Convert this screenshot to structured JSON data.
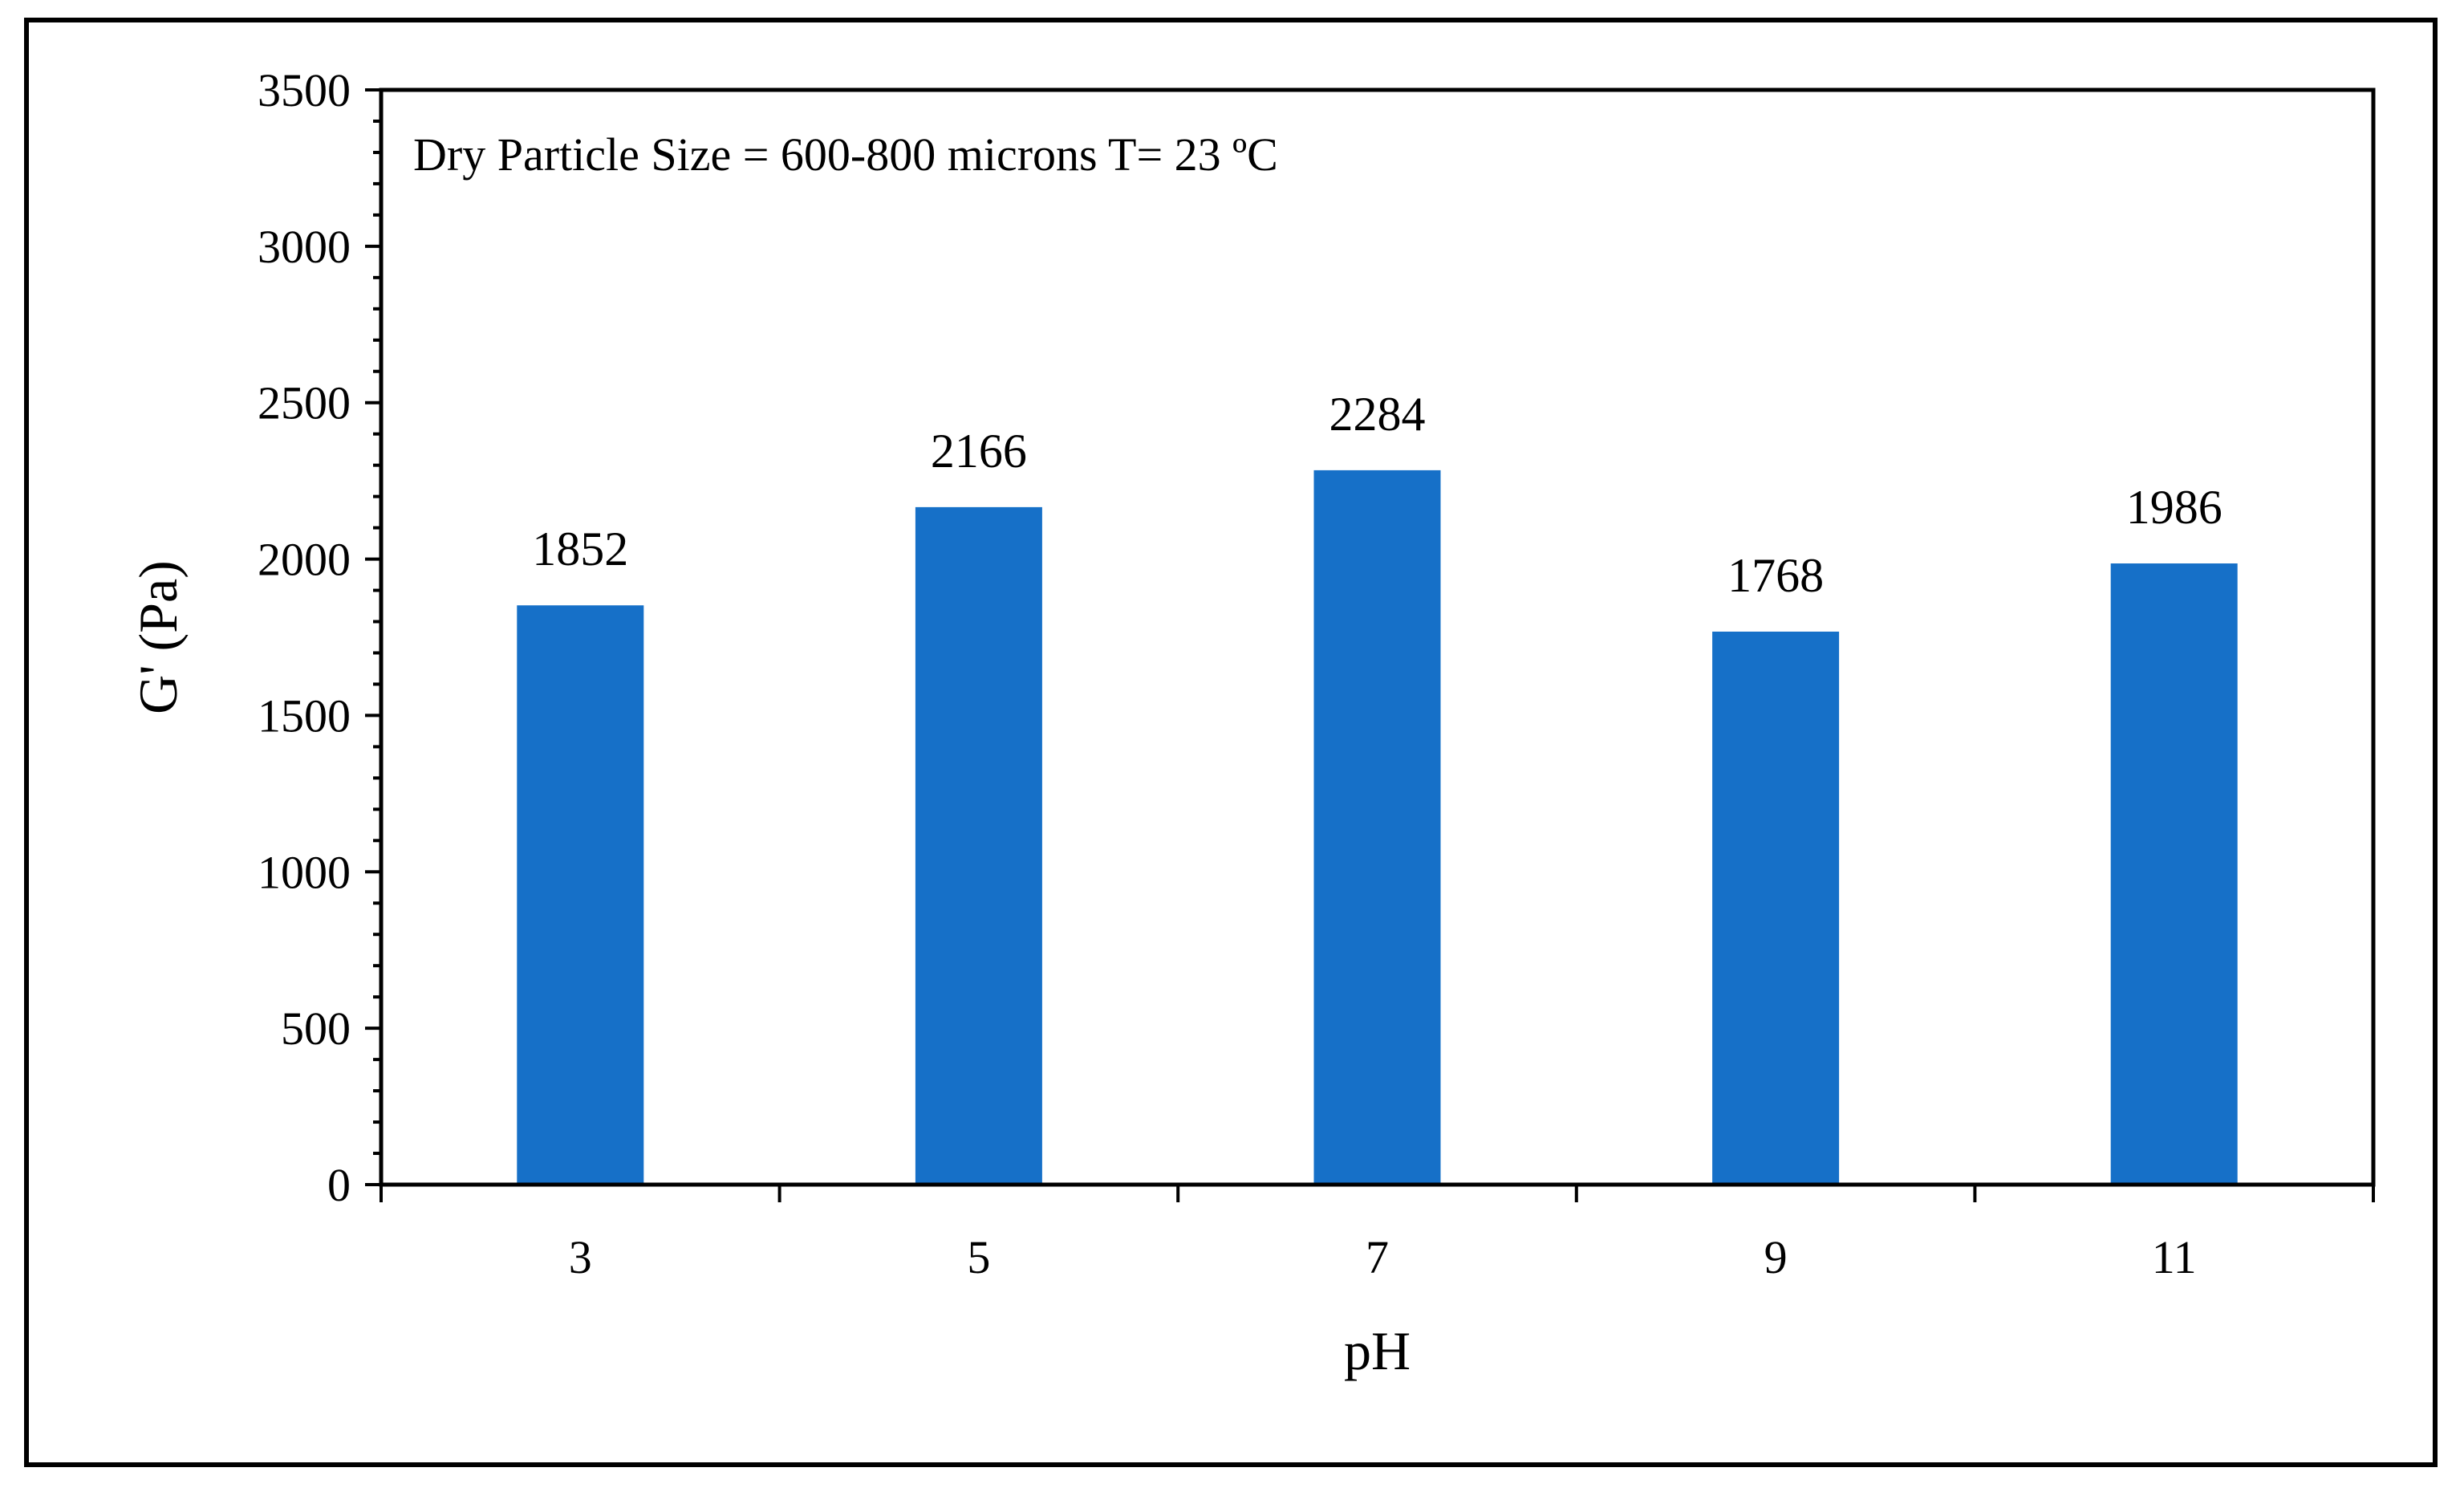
{
  "chart_data": {
    "type": "bar",
    "title": "",
    "annotation": "Dry Particle Size = 600-800 microns T= 23 ºC",
    "xlabel": "pH",
    "ylabel": "G' (Pa)",
    "categories": [
      "3",
      "5",
      "7",
      "9",
      "11"
    ],
    "values": [
      1852,
      2166,
      2284,
      1768,
      1986
    ],
    "data_labels": [
      "1852",
      "2166",
      "2284",
      "1768",
      "1986"
    ],
    "ylim": [
      0,
      3500
    ],
    "yticks": [
      0,
      500,
      1000,
      1500,
      2000,
      2500,
      3000,
      3500
    ],
    "ytick_labels": [
      "0",
      "500",
      "1000",
      "1500",
      "2000",
      "2500",
      "3000",
      "3500"
    ],
    "grid": false,
    "legend": "none",
    "bar_color": "#1670C8"
  }
}
